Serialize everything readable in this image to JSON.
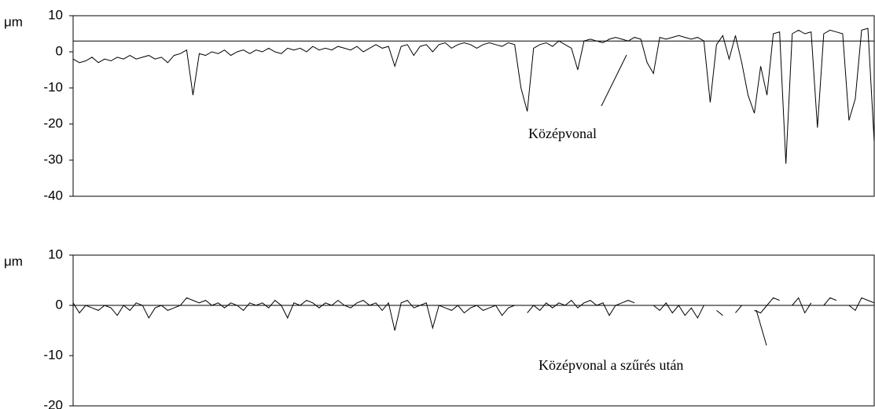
{
  "chart_data": [
    {
      "type": "line",
      "unit_label": "μm",
      "color": "#000000",
      "ylim": [
        -40,
        10
      ],
      "yticks": [
        10,
        0,
        -10,
        -20,
        -30,
        -40
      ],
      "reference_line": 3,
      "annotation": "Középvonal",
      "values": [
        -2,
        -3,
        -2.5,
        -1.5,
        -3,
        -2,
        -2.5,
        -1.5,
        -2,
        -1,
        -2,
        -1.5,
        -1,
        -2,
        -1.5,
        -3,
        -1,
        -0.5,
        0.5,
        -12,
        -0.5,
        -1,
        0,
        -0.5,
        0.5,
        -1,
        0,
        0.5,
        -0.5,
        0.5,
        0,
        1,
        0,
        -0.5,
        1,
        0.5,
        1,
        0,
        1.5,
        0.5,
        1,
        0.5,
        1.5,
        1,
        0.5,
        1.5,
        0,
        1,
        2,
        1,
        1.5,
        -4,
        1.5,
        2,
        -1,
        1.5,
        2,
        0,
        2,
        2.5,
        1,
        2,
        2.5,
        2,
        1,
        2,
        2.5,
        2,
        1.5,
        2.5,
        2,
        -10,
        -16.5,
        1,
        2,
        2.5,
        1.5,
        3,
        2,
        1,
        -5,
        3,
        3.5,
        3,
        2.5,
        3.5,
        4,
        3.5,
        3,
        4,
        3.5,
        -3,
        -6,
        4,
        3.5,
        4,
        4.5,
        4,
        3.5,
        4,
        3,
        -14,
        2,
        4.5,
        -2,
        4.5,
        -3,
        -12,
        -17,
        -4,
        -12,
        5,
        5.5,
        -31,
        5,
        6,
        5,
        5.5,
        -21,
        5,
        6,
        5.5,
        5,
        -19,
        -13,
        6,
        6.5,
        -25
      ]
    },
    {
      "type": "line",
      "unit_label": "μm",
      "color": "#000000",
      "ylim": [
        -20,
        10
      ],
      "yticks": [
        10,
        0,
        -10,
        -20
      ],
      "reference_line": 0,
      "annotation": "Középvonal a szűrés után",
      "values": [
        0.5,
        -1.5,
        0,
        -0.5,
        -1,
        0,
        -0.5,
        -2,
        0,
        -1,
        0.5,
        0,
        -2.5,
        -0.5,
        0,
        -1,
        -0.5,
        0,
        1.5,
        1,
        0.5,
        1,
        0,
        0.5,
        -0.5,
        0.5,
        0,
        -1,
        0.5,
        0,
        0.5,
        -0.5,
        1,
        0,
        -2.5,
        0.5,
        0,
        1,
        0.5,
        -0.5,
        0.5,
        0,
        1,
        0,
        -0.5,
        0.5,
        1,
        0,
        0.5,
        -1,
        0.5,
        -5,
        0.5,
        1,
        -0.5,
        0,
        0.5,
        -4.5,
        0,
        -0.5,
        -1,
        0,
        -1.5,
        -0.5,
        0,
        -1,
        -0.5,
        0,
        -2,
        -0.5,
        0,
        null,
        -1.5,
        0,
        -1,
        0.5,
        -0.5,
        0.5,
        0,
        1,
        -0.5,
        0.5,
        1,
        0,
        0.5,
        -2,
        0,
        0.5,
        1,
        0.5,
        null,
        null,
        0,
        -1,
        0.5,
        -1.5,
        0,
        -2,
        -0.5,
        -2.5,
        0,
        null,
        -1,
        -2,
        null,
        -1.5,
        0,
        null,
        -1,
        -1.5,
        0,
        1.5,
        1,
        null,
        0,
        1.5,
        -1.5,
        0.5,
        null,
        0,
        1.5,
        1,
        null,
        0,
        -1,
        1.5,
        1,
        0.5
      ]
    }
  ]
}
